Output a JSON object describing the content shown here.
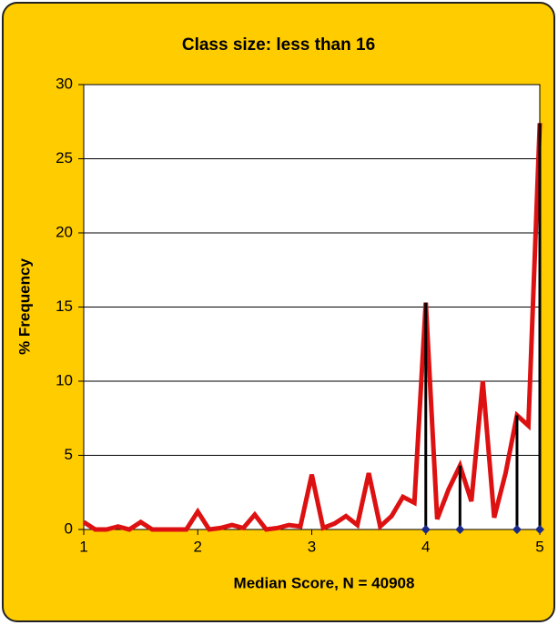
{
  "chart_data": {
    "type": "line",
    "title": "Class size: less than 16",
    "x_label": "Median Score, N = 40908",
    "y_label": "% Frequency",
    "x": [
      1.0,
      1.1,
      1.2,
      1.3,
      1.4,
      1.5,
      1.6,
      1.7,
      1.8,
      1.9,
      2.0,
      2.1,
      2.2,
      2.3,
      2.4,
      2.5,
      2.6,
      2.7,
      2.8,
      2.9,
      3.0,
      3.1,
      3.2,
      3.3,
      3.4,
      3.5,
      3.6,
      3.7,
      3.8,
      3.9,
      4.0,
      4.1,
      4.2,
      4.3,
      4.4,
      4.5,
      4.6,
      4.7,
      4.8,
      4.9,
      5.0
    ],
    "series": [
      {
        "color": "#dd1111",
        "values": [
          0.5,
          0,
          0,
          0.2,
          0,
          0.5,
          0,
          0,
          0,
          0,
          1.2,
          0,
          0.1,
          0.3,
          0.1,
          1.0,
          0,
          0.1,
          0.3,
          0.2,
          3.7,
          0.1,
          0.4,
          0.9,
          0.3,
          3.8,
          0.2,
          0.9,
          2.2,
          1.8,
          15.3,
          0.7,
          2.7,
          4.3,
          1.9,
          10,
          0.8,
          3.8,
          7.7,
          7.0,
          27.4
        ]
      }
    ],
    "stems": {
      "color": "#000000",
      "marker_color": "#1a2a8a",
      "x": [
        4.0,
        4.3,
        4.8,
        5.0
      ],
      "values": [
        15.3,
        4.3,
        7.7,
        27.4
      ]
    },
    "xlim": [
      1,
      5
    ],
    "xticks": [
      1,
      2,
      3,
      4,
      5
    ],
    "ylim": [
      0,
      30
    ],
    "yticks": [
      0,
      5,
      10,
      15,
      20,
      25,
      30
    ],
    "grid": true,
    "background": "#ffcc00"
  }
}
